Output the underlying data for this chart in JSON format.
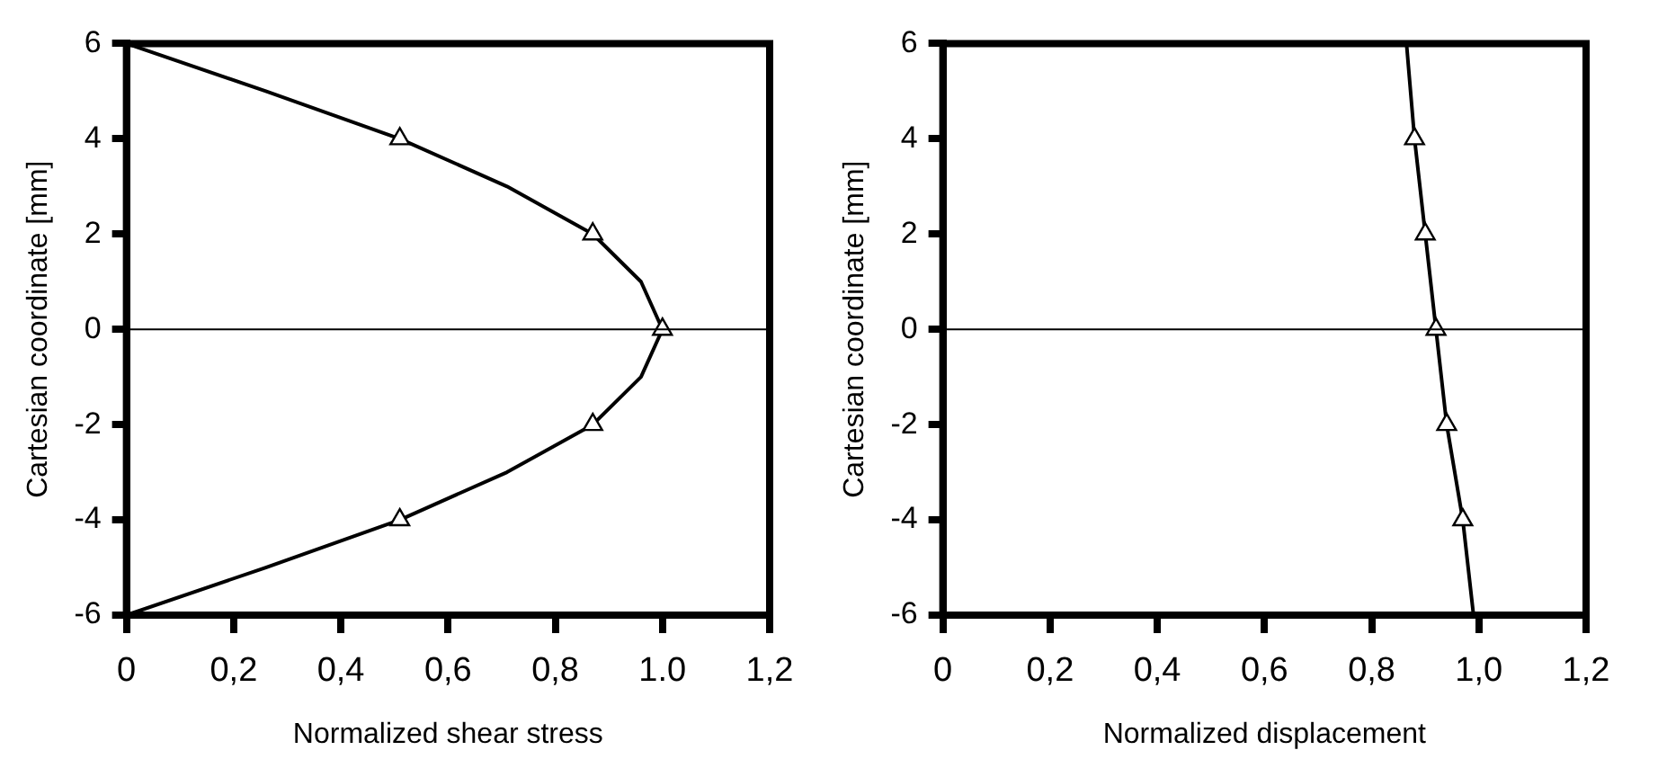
{
  "chart_data": [
    {
      "type": "line",
      "xlabel": "Normalized shear stress",
      "ylabel": "Cartesian coordinate [mm]",
      "xlim": [
        0,
        1.2
      ],
      "ylim": [
        -6,
        6
      ],
      "xticks": [
        0,
        {
          "value": 0.2,
          "label": "0,2"
        },
        {
          "value": 0.4,
          "label": "0,4"
        },
        {
          "value": 0.6,
          "label": "0,6"
        },
        {
          "value": 0.8,
          "label": "0,8"
        },
        {
          "value": 1.0,
          "label": "1.0"
        },
        {
          "value": 1.2,
          "label": "1,2"
        }
      ],
      "yticks": [
        -6,
        -4,
        -2,
        0,
        2,
        4,
        6
      ],
      "grid": false,
      "legend": false,
      "ref_lines": [
        {
          "axis": "y",
          "value": 0,
          "color": "#000000"
        }
      ],
      "series": [
        {
          "type": "line",
          "color": "#000000",
          "marker": "none",
          "line_style": "solid",
          "x": [
            0,
            0.26,
            0.51,
            0.71,
            0.87,
            0.96,
            1.0,
            0.96,
            0.87,
            0.71,
            0.51,
            0.26,
            0
          ],
          "values": [
            6,
            5,
            4,
            3,
            2,
            1,
            0,
            -1,
            -2,
            -3,
            -4,
            -5,
            -6
          ]
        },
        {
          "type": "scatter",
          "color": "#000000",
          "marker": "triangle",
          "x": [
            0.51,
            0.87,
            1.0,
            0.87,
            0.51
          ],
          "values": [
            4,
            2,
            0,
            -2,
            -4
          ]
        }
      ]
    },
    {
      "type": "line",
      "xlabel": "Normalized displacement",
      "ylabel": "Cartesian coordinate [mm]",
      "xlim": [
        0,
        1.2
      ],
      "ylim": [
        -6,
        6
      ],
      "xticks": [
        0,
        {
          "value": 0.2,
          "label": "0,2"
        },
        {
          "value": 0.4,
          "label": "0,4"
        },
        {
          "value": 0.6,
          "label": "0,6"
        },
        {
          "value": 0.8,
          "label": "0,8"
        },
        {
          "value": 1.0,
          "label": "1,0"
        },
        {
          "value": 1.2,
          "label": "1,2"
        }
      ],
      "yticks": [
        -6,
        -4,
        -2,
        0,
        2,
        4,
        6
      ],
      "grid": false,
      "legend": false,
      "ref_lines": [
        {
          "axis": "y",
          "value": 0,
          "color": "#000000"
        }
      ],
      "series": [
        {
          "type": "line",
          "color": "#000000",
          "marker": "none",
          "line_style": "solid",
          "x": [
            0.865,
            0.88,
            0.9,
            0.92,
            0.94,
            0.97,
            0.99
          ],
          "values": [
            6,
            4,
            2,
            0,
            -2,
            -4,
            -6
          ]
        },
        {
          "type": "scatter",
          "color": "#000000",
          "marker": "triangle",
          "x": [
            0.88,
            0.9,
            0.92,
            0.94,
            0.97
          ],
          "values": [
            4,
            2,
            0,
            -2,
            -4
          ]
        }
      ]
    }
  ]
}
